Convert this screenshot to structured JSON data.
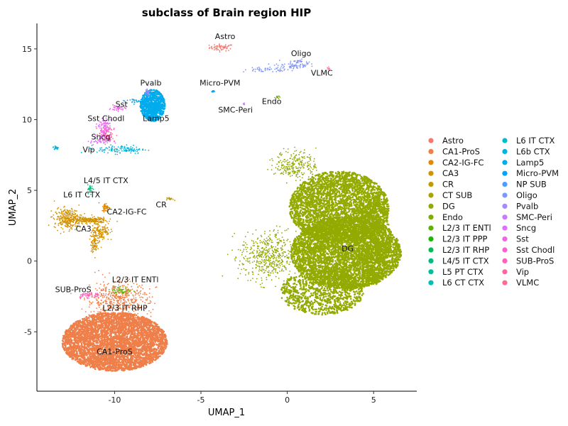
{
  "chart_data": {
    "type": "scatter",
    "title": "subclass of Brain region HIP",
    "xlabel": "UMAP_1",
    "ylabel": "UMAP_2",
    "xlim": [
      -14.5,
      7.5
    ],
    "ylim": [
      -9.2,
      16.8
    ],
    "x_ticks": [
      -10,
      -5,
      0,
      5
    ],
    "y_ticks": [
      -5,
      0,
      5,
      10,
      15
    ],
    "x_tick_labels": [
      "-10",
      "-5",
      "0",
      "5"
    ],
    "y_tick_labels": [
      "-5",
      "0",
      "5",
      "10",
      "15"
    ],
    "grid": false,
    "legend_position": "right",
    "legend": [
      {
        "name": "Astro",
        "color": "#F8766D"
      },
      {
        "name": "CA1-ProS",
        "color": "#EF7F49"
      },
      {
        "name": "CA2-IG-FC",
        "color": "#E38900"
      },
      {
        "name": "CA3",
        "color": "#D39200"
      },
      {
        "name": "CR",
        "color": "#C09B00"
      },
      {
        "name": "CT SUB",
        "color": "#AAA300"
      },
      {
        "name": "DG",
        "color": "#93AA00"
      },
      {
        "name": "Endo",
        "color": "#7CAE00"
      },
      {
        "name": "L2/3 IT ENTl",
        "color": "#5BB300"
      },
      {
        "name": "L2/3 IT PPP",
        "color": "#1AB900"
      },
      {
        "name": "L2/3 IT RHP",
        "color": "#00BC59"
      },
      {
        "name": "L4/5 IT CTX",
        "color": "#00BE81"
      },
      {
        "name": "L5 PT CTX",
        "color": "#00C09B"
      },
      {
        "name": "L6 CT CTX",
        "color": "#00BFB4"
      },
      {
        "name": "L6 IT CTX",
        "color": "#00BCCB"
      },
      {
        "name": "L6b CTX",
        "color": "#00B5DD"
      },
      {
        "name": "Lamp5",
        "color": "#00ACED"
      },
      {
        "name": "Micro-PVM",
        "color": "#00A5FF"
      },
      {
        "name": "NP SUB",
        "color": "#4D9FFF"
      },
      {
        "name": "Oligo",
        "color": "#7F96FF"
      },
      {
        "name": "Pvalb",
        "color": "#A58AFF"
      },
      {
        "name": "SMC-Peri",
        "color": "#C77CFF"
      },
      {
        "name": "Sncg",
        "color": "#DE71F9"
      },
      {
        "name": "Sst",
        "color": "#F066EA"
      },
      {
        "name": "Sst Chodl",
        "color": "#FC61D5"
      },
      {
        "name": "SUB-ProS",
        "color": "#FF62BC"
      },
      {
        "name": "Vip",
        "color": "#FF689F"
      },
      {
        "name": "VLMC",
        "color": "#FF6C91"
      }
    ],
    "cluster_labels": [
      {
        "text": "Astro",
        "x": -3.6,
        "y": 15.7
      },
      {
        "text": "Oligo",
        "x": 0.8,
        "y": 14.5
      },
      {
        "text": "VLMC",
        "x": 2.0,
        "y": 13.1
      },
      {
        "text": "Pvalb",
        "x": -7.9,
        "y": 12.4
      },
      {
        "text": "Micro-PVM",
        "x": -3.9,
        "y": 12.4
      },
      {
        "text": "Sst",
        "x": -9.6,
        "y": 10.9
      },
      {
        "text": "Endo",
        "x": -0.9,
        "y": 11.1
      },
      {
        "text": "SMC-Peri",
        "x": -3.0,
        "y": 10.5
      },
      {
        "text": "Sst Chodl",
        "x": -10.5,
        "y": 9.9
      },
      {
        "text": "Lamp5",
        "x": -7.6,
        "y": 9.9
      },
      {
        "text": "Sncg",
        "x": -10.8,
        "y": 8.6
      },
      {
        "text": "Vip",
        "x": -11.5,
        "y": 7.7
      },
      {
        "text": "L4/5 IT CTX",
        "x": -10.5,
        "y": 5.5
      },
      {
        "text": "L6 IT CTX",
        "x": -11.9,
        "y": 4.5
      },
      {
        "text": "CA2-IG-FC",
        "x": -9.3,
        "y": 3.3
      },
      {
        "text": "CR",
        "x": -7.3,
        "y": 3.8
      },
      {
        "text": "CA3",
        "x": -11.8,
        "y": 2.1
      },
      {
        "text": "DG",
        "x": 3.5,
        "y": 0.7
      },
      {
        "text": "L2/3 IT ENTl",
        "x": -8.8,
        "y": -1.5
      },
      {
        "text": "SUB-ProS",
        "x": -12.4,
        "y": -2.2
      },
      {
        "text": "L2/3 IT RHP",
        "x": -9.4,
        "y": -3.5
      },
      {
        "text": "CA1-ProS",
        "x": -10.0,
        "y": -6.6
      }
    ]
  }
}
